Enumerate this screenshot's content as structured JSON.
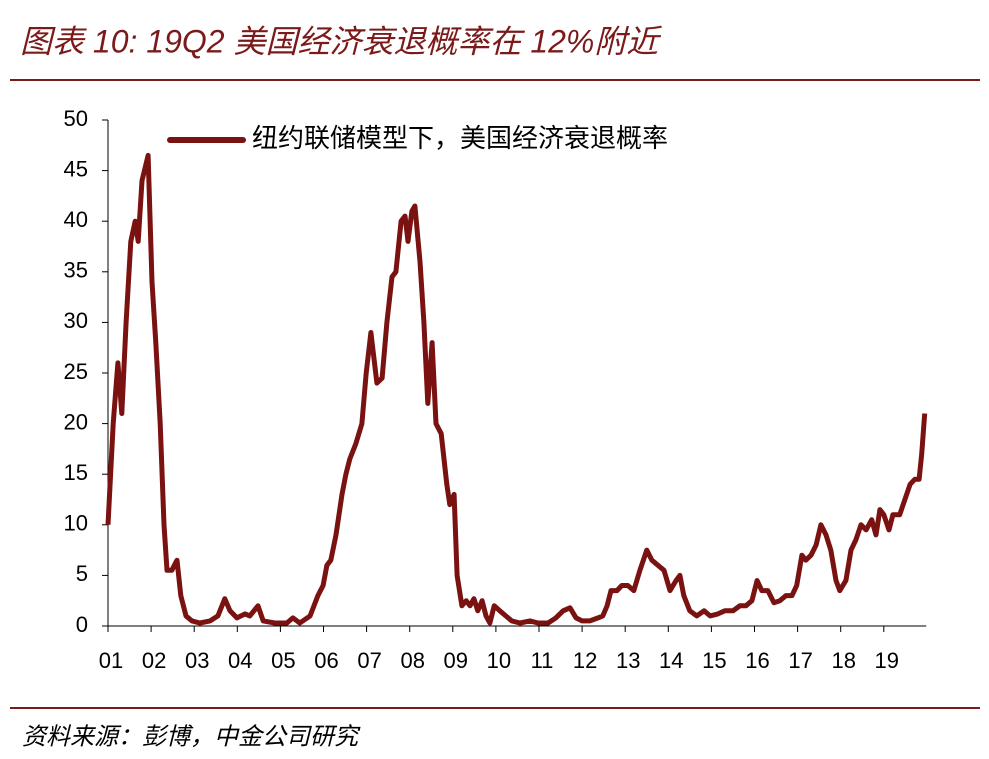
{
  "chart_data": {
    "type": "line",
    "title": "图表 10: 19Q2 美国经济衰退概率在 12%附近",
    "source": "资料来源：彭博，中金公司研究",
    "xlim": [
      1,
      20.1
    ],
    "xticks": [
      {
        "value": 1,
        "label": "01"
      },
      {
        "value": 2,
        "label": "02"
      },
      {
        "value": 3,
        "label": "03"
      },
      {
        "value": 4,
        "label": "04"
      },
      {
        "value": 5,
        "label": "05"
      },
      {
        "value": 6,
        "label": "06"
      },
      {
        "value": 7,
        "label": "07"
      },
      {
        "value": 8,
        "label": "08"
      },
      {
        "value": 9,
        "label": "09"
      },
      {
        "value": 10,
        "label": "10"
      },
      {
        "value": 11,
        "label": "11"
      },
      {
        "value": 12,
        "label": "12"
      },
      {
        "value": 13,
        "label": "13"
      },
      {
        "value": 14,
        "label": "14"
      },
      {
        "value": 15,
        "label": "15"
      },
      {
        "value": 16,
        "label": "16"
      },
      {
        "value": 17,
        "label": "17"
      },
      {
        "value": 18,
        "label": "18"
      },
      {
        "value": 19,
        "label": "19"
      }
    ],
    "ylim": [
      0,
      50
    ],
    "yticks": [
      0,
      5,
      10,
      15,
      20,
      25,
      30,
      35,
      40,
      45,
      50
    ],
    "legend": "top-left",
    "x": [
      1.0,
      1.12,
      1.23,
      1.32,
      1.42,
      1.53,
      1.63,
      1.7,
      1.79,
      1.93,
      2.02,
      2.11,
      2.21,
      2.3,
      2.37,
      2.48,
      2.6,
      2.69,
      2.81,
      2.95,
      3.13,
      3.37,
      3.55,
      3.71,
      3.83,
      3.99,
      4.18,
      4.29,
      4.48,
      4.6,
      4.87,
      5.15,
      5.29,
      5.45,
      5.69,
      5.87,
      5.99,
      6.08,
      6.17,
      6.29,
      6.43,
      6.52,
      6.61,
      6.75,
      6.89,
      6.99,
      7.1,
      7.24,
      7.36,
      7.47,
      7.59,
      7.68,
      7.8,
      7.89,
      7.96,
      8.05,
      8.12,
      8.24,
      8.33,
      8.42,
      8.52,
      8.61,
      8.73,
      8.86,
      8.93,
      9.03,
      9.1,
      9.21,
      9.31,
      9.4,
      9.49,
      9.58,
      9.68,
      9.77,
      9.86,
      9.96,
      10.09,
      10.23,
      10.37,
      10.56,
      10.79,
      10.98,
      11.21,
      11.39,
      11.56,
      11.72,
      11.86,
      12.0,
      12.18,
      12.37,
      12.48,
      12.58,
      12.67,
      12.81,
      12.92,
      13.06,
      13.2,
      13.34,
      13.5,
      13.62,
      13.76,
      13.9,
      14.04,
      14.18,
      14.27,
      14.36,
      14.5,
      14.66,
      14.83,
      14.97,
      15.15,
      15.31,
      15.5,
      15.66,
      15.8,
      15.94,
      16.06,
      16.17,
      16.31,
      16.45,
      16.59,
      16.73,
      16.87,
      16.98,
      17.1,
      17.19,
      17.31,
      17.43,
      17.54,
      17.66,
      17.77,
      17.89,
      17.98,
      18.12,
      18.24,
      18.35,
      18.47,
      18.59,
      18.72,
      18.82,
      18.91,
      19.0,
      19.12,
      19.21,
      19.37,
      19.49,
      19.61,
      19.72,
      19.82,
      19.88,
      19.95
    ],
    "series": [
      {
        "name": "纽约联储模型下，美国经济衰退概率",
        "color": "#7a1212",
        "values": [
          10,
          20,
          26,
          21,
          30,
          38,
          40,
          38,
          44,
          46.5,
          34,
          28,
          20,
          10,
          5.5,
          5.5,
          6.5,
          3,
          1,
          0.5,
          0.3,
          0.5,
          1,
          2.7,
          1.5,
          0.8,
          1.2,
          1,
          2,
          0.5,
          0.3,
          0.3,
          0.8,
          0.3,
          1,
          3,
          4,
          6,
          6.5,
          9,
          13,
          15,
          16.5,
          18,
          20,
          25,
          29,
          24,
          24.5,
          30,
          34.5,
          35,
          40,
          40.5,
          38,
          41,
          41.5,
          36,
          30,
          22,
          28,
          20,
          19,
          14,
          12,
          13,
          5,
          2,
          2.5,
          2,
          2.7,
          1.5,
          2.5,
          1,
          0.3,
          2,
          1.5,
          1,
          0.5,
          0.3,
          0.5,
          0.3,
          0.3,
          0.8,
          1.5,
          1.8,
          0.8,
          0.5,
          0.5,
          0.8,
          1,
          2,
          3.5,
          3.5,
          4,
          4,
          3.5,
          5.5,
          7.5,
          6.5,
          6,
          5.5,
          3.5,
          4.5,
          5,
          3,
          1.5,
          1,
          1.5,
          1,
          1.2,
          1.5,
          1.5,
          2,
          2,
          2.5,
          4.5,
          3.5,
          3.5,
          2.3,
          2.5,
          3,
          3,
          4,
          7,
          6.5,
          7,
          8,
          10,
          9,
          7.5,
          4.5,
          3.5,
          4.5,
          7.5,
          8.5,
          10,
          9.5,
          10.5,
          9,
          11.5,
          11,
          9.5,
          11,
          11,
          12.5,
          14,
          14.5,
          14.5,
          17,
          21
        ]
      }
    ]
  }
}
